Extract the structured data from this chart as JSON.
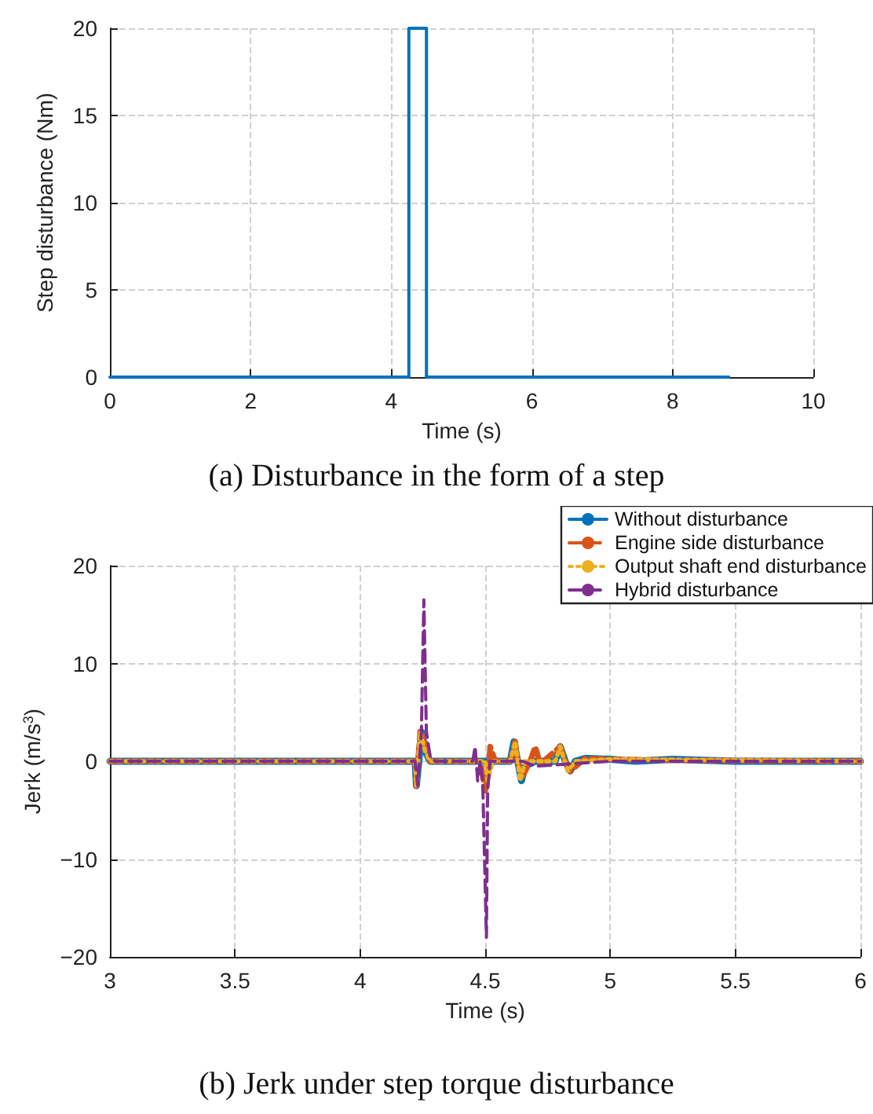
{
  "chart_data": [
    {
      "type": "line",
      "title": "(a) Disturbance in the form of a step",
      "xlabel": "Time (s)",
      "ylabel": "Step disturbance (Nm)",
      "x": [
        0,
        4.25,
        4.25,
        4.5,
        4.5,
        8.8
      ],
      "values": [
        0,
        0,
        20,
        20,
        0,
        0
      ],
      "color": "#0072bd",
      "xlim": [
        0,
        10
      ],
      "xticks": [
        0,
        2,
        4,
        6,
        8,
        10
      ],
      "ylim": [
        0,
        20
      ],
      "yticks": [
        0,
        5,
        10,
        15,
        20
      ],
      "grid": true,
      "line_style": "solid"
    },
    {
      "type": "line",
      "title": "(b) Jerk under step torque disturbance",
      "xlabel": "Time (s)",
      "ylabel": "Jerk (m/s$^{3}$)",
      "xlim": [
        3,
        6
      ],
      "xticks": [
        3,
        3.5,
        4,
        4.5,
        5,
        5.5,
        6
      ],
      "ylim": [
        -20,
        20
      ],
      "yticks": [
        {
          "value": -20,
          "label": "−20"
        },
        {
          "value": -10,
          "label": "−10"
        },
        0,
        10,
        20
      ],
      "grid": true,
      "legend": "top right",
      "series": [
        {
          "name": "Without disturbance",
          "color": "#0072bd",
          "line_style": "solid",
          "x": [
            3,
            4.22,
            4.225,
            4.235,
            4.245,
            4.26,
            4.28,
            4.3,
            4.45,
            4.5,
            4.55,
            4.6,
            4.615,
            4.63,
            4.645,
            4.66,
            4.7,
            4.78,
            4.8,
            4.82,
            4.84,
            4.86,
            4.9,
            5,
            5.1,
            5.25,
            5.5,
            6
          ],
          "values": [
            0,
            0,
            -2.5,
            0,
            3,
            1,
            0,
            0,
            0,
            0,
            0,
            0,
            2,
            0,
            -2,
            -0.5,
            0,
            0,
            1.5,
            0,
            -1,
            0,
            0.3,
            0.2,
            0,
            0.2,
            0,
            0
          ]
        },
        {
          "name": "Engine side disturbance",
          "color": "#d95319",
          "line_style": "dashed",
          "x": [
            3,
            4.22,
            4.225,
            4.24,
            4.26,
            4.28,
            4.3,
            4.48,
            4.5,
            4.51,
            4.52,
            4.54,
            4.6,
            4.62,
            4.63,
            4.65,
            4.68,
            4.7,
            4.72,
            4.8,
            4.82,
            4.84,
            4.9,
            5,
            5.25,
            6
          ],
          "values": [
            0,
            0,
            -2.5,
            3,
            2,
            0,
            0,
            0,
            -3,
            -2,
            1.5,
            0,
            0,
            2,
            0,
            -1.5,
            0,
            1.5,
            -0.3,
            1.5,
            0,
            -1,
            0.3,
            0.2,
            0.1,
            0
          ]
        },
        {
          "name": "Output shaft end disturbance",
          "color": "#edb120",
          "line_style": "dotted",
          "x": [
            3,
            4.22,
            4.225,
            4.24,
            4.26,
            4.28,
            4.5,
            4.51,
            4.53,
            4.6,
            4.62,
            4.64,
            4.66,
            4.78,
            4.8,
            4.83,
            4.86,
            5,
            6
          ],
          "values": [
            0,
            0,
            -2.5,
            3,
            1,
            0,
            0,
            -2,
            0,
            0,
            2,
            -2,
            0,
            0,
            1.5,
            -1,
            0,
            0.2,
            0
          ]
        },
        {
          "name": "Hybrid disturbance",
          "color": "#7e2f8e",
          "line_style": "dashed",
          "x": [
            3,
            4.22,
            4.23,
            4.245,
            4.255,
            4.265,
            4.28,
            4.3,
            4.45,
            4.46,
            4.47,
            4.48,
            4.49,
            4.505,
            4.51,
            4.52,
            4.54,
            4.6,
            4.65,
            4.7,
            5,
            6
          ],
          "values": [
            0,
            0,
            -2.5,
            3,
            16.5,
            3,
            0.5,
            0,
            0,
            1.5,
            -2,
            0,
            -2,
            -18,
            -3,
            0,
            0,
            0,
            0,
            -0.5,
            0,
            0
          ]
        }
      ]
    }
  ]
}
